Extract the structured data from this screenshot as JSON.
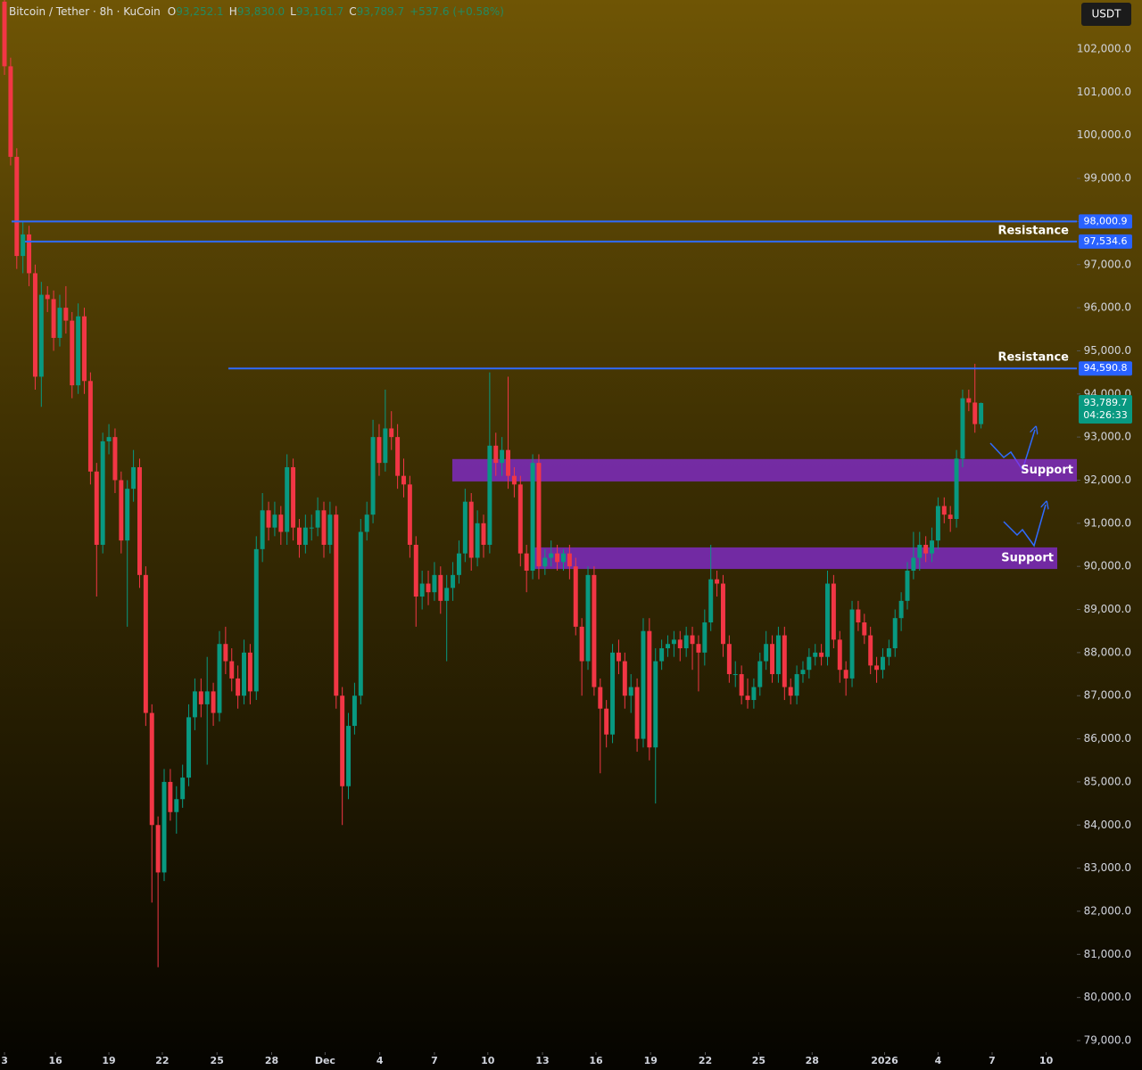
{
  "chart_data": {
    "type": "candlestick",
    "title": "Bitcoin / Tether · 8h · KuCoin",
    "legend": [
      {
        "key": "O",
        "value": "93,252.1"
      },
      {
        "key": "H",
        "value": "93,830.0"
      },
      {
        "key": "L",
        "value": "93,161.7"
      },
      {
        "key": "C",
        "value": "93,789.7"
      }
    ],
    "change": "+537.6 (+0.58%)",
    "currency": "USDT",
    "up_color": "#089981",
    "down_color": "#f23645",
    "ohlc": [
      [
        103100,
        103300,
        101400,
        101600
      ],
      [
        101600,
        101800,
        99300,
        99500
      ],
      [
        99500,
        99700,
        96900,
        97200
      ],
      [
        97200,
        98000,
        96800,
        97700
      ],
      [
        97700,
        97900,
        96500,
        96800
      ],
      [
        96800,
        97000,
        94100,
        94400
      ],
      [
        94400,
        96600,
        93700,
        96300
      ],
      [
        96300,
        96500,
        95900,
        96200
      ],
      [
        96200,
        96400,
        95000,
        95300
      ],
      [
        95300,
        96300,
        95100,
        96000
      ],
      [
        96000,
        96500,
        95400,
        95700
      ],
      [
        95700,
        95900,
        93900,
        94200
      ],
      [
        94200,
        96100,
        94000,
        95800
      ],
      [
        95800,
        96000,
        94000,
        94300
      ],
      [
        94300,
        94500,
        91900,
        92200
      ],
      [
        92200,
        92400,
        89300,
        90500
      ],
      [
        90500,
        93100,
        90300,
        92900
      ],
      [
        92900,
        93300,
        92600,
        93000
      ],
      [
        93000,
        93200,
        91700,
        92000
      ],
      [
        92000,
        92200,
        90300,
        90600
      ],
      [
        90600,
        92000,
        88600,
        91800
      ],
      [
        91800,
        92700,
        91500,
        92300
      ],
      [
        92300,
        92500,
        89500,
        89800
      ],
      [
        89800,
        90000,
        86300,
        86600
      ],
      [
        86600,
        86800,
        82200,
        84000
      ],
      [
        84000,
        84200,
        80700,
        82900
      ],
      [
        82900,
        85300,
        82700,
        85000
      ],
      [
        85000,
        85300,
        84100,
        84300
      ],
      [
        84300,
        84900,
        83800,
        84600
      ],
      [
        84600,
        85400,
        84400,
        85100
      ],
      [
        85100,
        86800,
        84900,
        86500
      ],
      [
        86500,
        87400,
        86200,
        87100
      ],
      [
        87100,
        87400,
        86500,
        86800
      ],
      [
        86800,
        87900,
        85400,
        87100
      ],
      [
        87100,
        87300,
        86300,
        86600
      ],
      [
        86600,
        88500,
        86400,
        88200
      ],
      [
        88200,
        88600,
        87500,
        87800
      ],
      [
        87800,
        88100,
        87100,
        87400
      ],
      [
        87400,
        87700,
        86700,
        87000
      ],
      [
        87000,
        88300,
        86800,
        88000
      ],
      [
        88000,
        88200,
        86800,
        87100
      ],
      [
        87100,
        90700,
        86900,
        90400
      ],
      [
        90400,
        91700,
        90100,
        91300
      ],
      [
        91300,
        91500,
        90600,
        90900
      ],
      [
        90900,
        91500,
        90700,
        91200
      ],
      [
        91200,
        91400,
        90500,
        90800
      ],
      [
        90800,
        92600,
        90500,
        92300
      ],
      [
        92300,
        92500,
        90600,
        90900
      ],
      [
        90900,
        91100,
        90200,
        90500
      ],
      [
        90500,
        91200,
        90300,
        90900
      ],
      [
        90900,
        91200,
        90600,
        90900
      ],
      [
        90900,
        91600,
        90700,
        91300
      ],
      [
        91300,
        91500,
        90200,
        90500
      ],
      [
        90500,
        91500,
        90300,
        91200
      ],
      [
        91200,
        91400,
        86700,
        87000
      ],
      [
        87000,
        87200,
        84000,
        84900
      ],
      [
        84900,
        86600,
        84600,
        86300
      ],
      [
        86300,
        87300,
        86100,
        87000
      ],
      [
        87000,
        91100,
        86800,
        90800
      ],
      [
        90800,
        91500,
        90600,
        91200
      ],
      [
        91200,
        93400,
        91000,
        93000
      ],
      [
        93000,
        93300,
        92100,
        92400
      ],
      [
        92400,
        94100,
        92200,
        93200
      ],
      [
        93200,
        93600,
        92700,
        93000
      ],
      [
        93000,
        93300,
        91800,
        92100
      ],
      [
        92100,
        92500,
        91600,
        91900
      ],
      [
        91900,
        92100,
        90200,
        90500
      ],
      [
        90500,
        90700,
        88600,
        89300
      ],
      [
        89300,
        89900,
        89000,
        89600
      ],
      [
        89600,
        89900,
        89100,
        89400
      ],
      [
        89400,
        90100,
        89200,
        89800
      ],
      [
        89800,
        90000,
        88900,
        89200
      ],
      [
        89200,
        89800,
        87800,
        89500
      ],
      [
        89500,
        90100,
        89200,
        89800
      ],
      [
        89800,
        90600,
        89600,
        90300
      ],
      [
        90300,
        91800,
        90100,
        91500
      ],
      [
        91500,
        91700,
        89900,
        90200
      ],
      [
        90200,
        91300,
        90000,
        91000
      ],
      [
        91000,
        91200,
        90200,
        90500
      ],
      [
        90500,
        94500,
        90300,
        92800
      ],
      [
        92800,
        93100,
        92100,
        92400
      ],
      [
        92400,
        93000,
        92100,
        92700
      ],
      [
        92700,
        94400,
        91800,
        92100
      ],
      [
        92100,
        92300,
        91600,
        91900
      ],
      [
        91900,
        92100,
        90000,
        90300
      ],
      [
        90300,
        90500,
        89400,
        89900
      ],
      [
        89900,
        92600,
        89700,
        92400
      ],
      [
        92400,
        92600,
        89700,
        90000
      ],
      [
        90000,
        90400,
        89800,
        90200
      ],
      [
        90200,
        90600,
        90000,
        90300
      ],
      [
        90300,
        90500,
        89900,
        90100
      ],
      [
        90100,
        90400,
        89900,
        90300
      ],
      [
        90300,
        90500,
        89700,
        90000
      ],
      [
        90000,
        90200,
        88400,
        88600
      ],
      [
        88600,
        88800,
        87000,
        87800
      ],
      [
        87800,
        90000,
        87600,
        89800
      ],
      [
        89800,
        90000,
        87000,
        87200
      ],
      [
        87200,
        87400,
        85200,
        86700
      ],
      [
        86700,
        86900,
        85800,
        86100
      ],
      [
        86100,
        88200,
        85900,
        88000
      ],
      [
        88000,
        88300,
        87500,
        87800
      ],
      [
        87800,
        88000,
        86700,
        87000
      ],
      [
        87000,
        87500,
        86600,
        87200
      ],
      [
        87200,
        87400,
        85700,
        86000
      ],
      [
        86000,
        88800,
        85800,
        88500
      ],
      [
        88500,
        88800,
        85500,
        85800
      ],
      [
        85800,
        88100,
        84500,
        87800
      ],
      [
        87800,
        88300,
        87600,
        88100
      ],
      [
        88100,
        88400,
        87900,
        88200
      ],
      [
        88200,
        88500,
        87900,
        88300
      ],
      [
        88300,
        88500,
        87800,
        88100
      ],
      [
        88100,
        88600,
        87900,
        88400
      ],
      [
        88400,
        88600,
        87600,
        88200
      ],
      [
        88200,
        88400,
        87100,
        88000
      ],
      [
        88000,
        89000,
        87700,
        88700
      ],
      [
        88700,
        90500,
        88500,
        89700
      ],
      [
        89700,
        89900,
        89300,
        89600
      ],
      [
        89600,
        89800,
        87900,
        88200
      ],
      [
        88200,
        88400,
        87300,
        87500
      ],
      [
        87500,
        87800,
        87200,
        87500
      ],
      [
        87500,
        87700,
        86800,
        87000
      ],
      [
        87000,
        87400,
        86700,
        86900
      ],
      [
        86900,
        87400,
        86700,
        87200
      ],
      [
        87200,
        88000,
        87000,
        87800
      ],
      [
        87800,
        88500,
        87600,
        88200
      ],
      [
        88200,
        88400,
        87300,
        87500
      ],
      [
        87500,
        88600,
        87300,
        88400
      ],
      [
        88400,
        88600,
        86900,
        87200
      ],
      [
        87200,
        87400,
        86800,
        87000
      ],
      [
        87000,
        87700,
        86800,
        87500
      ],
      [
        87500,
        87800,
        87300,
        87600
      ],
      [
        87600,
        88100,
        87400,
        87900
      ],
      [
        87900,
        88200,
        87700,
        88000
      ],
      [
        88000,
        88200,
        87700,
        87900
      ],
      [
        87900,
        89900,
        87700,
        89600
      ],
      [
        89600,
        89800,
        88100,
        88300
      ],
      [
        88300,
        88500,
        87300,
        87600
      ],
      [
        87600,
        87800,
        87000,
        87400
      ],
      [
        87400,
        89200,
        87200,
        89000
      ],
      [
        89000,
        89200,
        88500,
        88700
      ],
      [
        88700,
        88900,
        88200,
        88400
      ],
      [
        88400,
        88600,
        87500,
        87700
      ],
      [
        87700,
        87900,
        87300,
        87600
      ],
      [
        87600,
        88100,
        87400,
        87900
      ],
      [
        87900,
        88300,
        87700,
        88100
      ],
      [
        88100,
        89000,
        87900,
        88800
      ],
      [
        88800,
        89400,
        88500,
        89200
      ],
      [
        89200,
        90100,
        89000,
        89900
      ],
      [
        89900,
        90800,
        89700,
        90200
      ],
      [
        90200,
        90800,
        89900,
        90500
      ],
      [
        90500,
        90700,
        90100,
        90300
      ],
      [
        90300,
        90900,
        90100,
        90600
      ],
      [
        90600,
        91600,
        90400,
        91400
      ],
      [
        91400,
        91600,
        91000,
        91200
      ],
      [
        91200,
        91400,
        90800,
        91100
      ],
      [
        91100,
        92700,
        90900,
        92500
      ],
      [
        92500,
        94100,
        92300,
        93900
      ],
      [
        93900,
        94100,
        93600,
        93800
      ],
      [
        93800,
        94700,
        93100,
        93300
      ],
      [
        93300,
        93800,
        93200,
        93789.7
      ]
    ],
    "xlim": [
      -0.73,
      174.6
    ],
    "xticks": [
      {
        "value": 0,
        "label": "3"
      },
      {
        "value": 8.3,
        "label": "16"
      },
      {
        "value": 17.0,
        "label": "19"
      },
      {
        "value": 25.7,
        "label": "22"
      },
      {
        "value": 34.6,
        "label": "25"
      },
      {
        "value": 43.5,
        "label": "28"
      },
      {
        "value": 52.2,
        "label": "Dec"
      },
      {
        "value": 61.1,
        "label": "4"
      },
      {
        "value": 70.0,
        "label": "7"
      },
      {
        "value": 78.7,
        "label": "10"
      },
      {
        "value": 87.6,
        "label": "13"
      },
      {
        "value": 96.3,
        "label": "16"
      },
      {
        "value": 105.2,
        "label": "19"
      },
      {
        "value": 114.1,
        "label": "22"
      },
      {
        "value": 122.8,
        "label": "25"
      },
      {
        "value": 131.5,
        "label": "28"
      },
      {
        "value": 143.3,
        "label": "2026"
      },
      {
        "value": 152.0,
        "label": "4"
      },
      {
        "value": 160.8,
        "label": "7"
      },
      {
        "value": 169.6,
        "label": "10"
      }
    ],
    "ylim": [
      78731,
      103138
    ],
    "yticks": [
      {
        "value": 79000,
        "label": "79,000.0"
      },
      {
        "value": 80000,
        "label": "80,000.0"
      },
      {
        "value": 81000,
        "label": "81,000.0"
      },
      {
        "value": 82000,
        "label": "82,000.0"
      },
      {
        "value": 83000,
        "label": "83,000.0"
      },
      {
        "value": 84000,
        "label": "84,000.0"
      },
      {
        "value": 85000,
        "label": "85,000.0"
      },
      {
        "value": 86000,
        "label": "86,000.0"
      },
      {
        "value": 87000,
        "label": "87,000.0"
      },
      {
        "value": 88000,
        "label": "88,000.0"
      },
      {
        "value": 89000,
        "label": "89,000.0"
      },
      {
        "value": 90000,
        "label": "90,000.0"
      },
      {
        "value": 91000,
        "label": "91,000.0"
      },
      {
        "value": 92000,
        "label": "92,000.0"
      },
      {
        "value": 93000,
        "label": "93,000.0"
      },
      {
        "value": 94000,
        "label": "94,000.0"
      },
      {
        "value": 95000,
        "label": "95,000.0"
      },
      {
        "value": 96000,
        "label": "96,000.0"
      },
      {
        "value": 97000,
        "label": "97,000.0"
      },
      {
        "value": 98000,
        "label": "98,000.0"
      },
      {
        "value": 99000,
        "label": "99,000.0"
      },
      {
        "value": 100000,
        "label": "100,000.0"
      },
      {
        "value": 101000,
        "label": "101,000.0"
      },
      {
        "value": 102000,
        "label": "102,000.0"
      }
    ],
    "levels": [
      {
        "value": 98000.9,
        "label": "98,000.9"
      },
      {
        "value": 97534.6,
        "label": "97,534.6",
        "note": "Resistance"
      },
      {
        "value": 94590.8,
        "label": "94,590.8",
        "note": "Resistance"
      }
    ],
    "zones": [
      {
        "name": "Support",
        "top": 92490,
        "bottom": 91970
      },
      {
        "name": "Support",
        "top": 90440,
        "bottom": 89940
      }
    ],
    "last_price": {
      "value": 93789.7,
      "label": "93,789.7"
    },
    "countdown": "04:26:33"
  }
}
